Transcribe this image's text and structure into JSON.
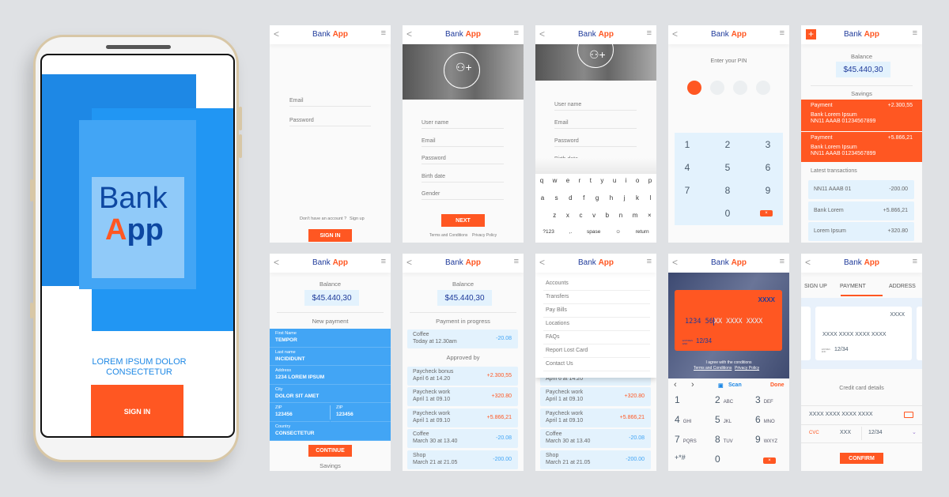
{
  "brand": {
    "bank": "Bank",
    "app": "App",
    "A": "A",
    "pp": "pp"
  },
  "colors": {
    "accent": "#ff5722",
    "primary": "#1e88e5",
    "dark_blue": "#1e3a9a",
    "light_blue": "#e3f2fd"
  },
  "phone": {
    "tagline_1": "LOREM IPSUM DOLOR",
    "tagline_2": "CONSECTETUR",
    "sign_in": "SIGN IN"
  },
  "header": {
    "back_icon": "chevron-left-icon",
    "menu_icon": "hamburger-icon",
    "back": "<",
    "menu": "≡"
  },
  "login": {
    "fields": [
      "Email",
      "Password"
    ],
    "prompt": "Don't have an account ?",
    "sign_up": "Sign up",
    "button": "SIGN IN"
  },
  "register": {
    "fields": [
      "User name",
      "Email",
      "Password",
      "Birth date",
      "Gender"
    ],
    "button": "NEXT",
    "terms": "Terms and Conditions",
    "privacy": "Privacy Policy"
  },
  "register_keyboard": {
    "fields": [
      "User name",
      "Email",
      "Password",
      "Birth date"
    ],
    "rows": [
      [
        "q",
        "w",
        "e",
        "r",
        "t",
        "y",
        "u",
        "i",
        "o",
        "p"
      ],
      [
        "a",
        "s",
        "d",
        "f",
        "g",
        "h",
        "j",
        "k",
        "l"
      ],
      [
        "z",
        "x",
        "c",
        "v",
        "b",
        "n",
        "m",
        "×"
      ],
      [
        "?123",
        ",.",
        "spase",
        "☺",
        "return"
      ]
    ]
  },
  "pin": {
    "label": "Enter your PIN",
    "entered": 1,
    "total": 4,
    "keys": [
      "1",
      "2",
      "3",
      "4",
      "5",
      "6",
      "7",
      "8",
      "9",
      "0"
    ],
    "delete": "×"
  },
  "home": {
    "balance_label": "Balance",
    "balance": "$45.440,30",
    "savings_label": "Savings",
    "payments": [
      {
        "label": "Payment",
        "amount": "+2.300,55",
        "bank": "Bank Lorem Ipsum",
        "account": "NN11 AAAB 01234567899"
      },
      {
        "label": "Payment",
        "amount": "+5.866,21",
        "bank": "Bank Lorem Ipsum",
        "account": "NN11 AAAB 01234567899"
      }
    ],
    "latest_label": "Latest transactions",
    "transactions": [
      {
        "name": "NN11 AAAB 01",
        "amount": "-200.00"
      },
      {
        "name": "Bank Lorem",
        "amount": "+5.866,21"
      },
      {
        "name": "Lorem Ipsum",
        "amount": "+320.80"
      }
    ]
  },
  "new_payment": {
    "balance_label": "Balance",
    "balance": "$45.440,30",
    "section": "New payment",
    "fields": [
      {
        "label": "First Name",
        "value": "TEMPOR"
      },
      {
        "label": "Last name",
        "value": "INCIDIDUNT"
      },
      {
        "label": "Address",
        "value": "1234  LOREM IPSUM"
      },
      {
        "label": "City",
        "value": "DOLOR SIT AMET"
      }
    ],
    "zip": [
      {
        "label": "ZIP",
        "value": "123456"
      },
      {
        "label": "ZIP",
        "value": "123456"
      }
    ],
    "country": {
      "label": "Country",
      "value": "CONSECTETUR"
    },
    "button": "CONTINUE",
    "footer": "Savings"
  },
  "progress": {
    "balance_label": "Balance",
    "balance": "$45.440,30",
    "section": "Payment in progress",
    "pending": {
      "name": "Coffee",
      "date": "Today at 12.30am",
      "amount": "-20.08"
    },
    "approved_label": "Approved by",
    "approved": [
      {
        "name": "Paycheck bonus",
        "date": "April 6 at 14.20",
        "amount": "+2.300,55"
      },
      {
        "name": "Paycheck work",
        "date": "April 1 at 09.10",
        "amount": "+320.80"
      },
      {
        "name": "Paycheck work",
        "date": "April 1 at 09.10",
        "amount": "+5.866,21"
      },
      {
        "name": "Coffee",
        "date": "March 30 at 13.40",
        "amount": "-20.08"
      },
      {
        "name": "Shop",
        "date": "March 21 at 21.05",
        "amount": "-200.00"
      }
    ]
  },
  "menu_screen": {
    "items": [
      "Accounts",
      "Transfers",
      "Pay Bills",
      "Locations",
      "FAQs",
      "Report Lost Card",
      "Contact Us"
    ],
    "behind": [
      {
        "name": "",
        "date": "April 6 at 14.20",
        "amount": ""
      },
      {
        "name": "Paycheck work",
        "date": "April 1 at 09.10",
        "amount": "+320.80"
      },
      {
        "name": "Paycheck work",
        "date": "April 1 at 09.10",
        "amount": "+5.866,21"
      },
      {
        "name": "Coffee",
        "date": "March 30 at 13.40",
        "amount": "-20.08"
      },
      {
        "name": "Shop",
        "date": "March 21 at 21.05",
        "amount": "-200.00"
      }
    ]
  },
  "card_scan": {
    "card_top": "XXXX",
    "number_typed": "1234 56",
    "number_rest": "XX XXXX XXXX",
    "expires_label": "EXPIRES END",
    "expiry": "12/34",
    "agree": "I agree with the conditions",
    "terms": "Terms and Conditions",
    "privacy": "Privacy Policy",
    "toolbar": {
      "prev": "‹",
      "next": "›",
      "scan": "Scan",
      "done": "Done"
    },
    "keys": [
      {
        "n": "1",
        "l": ""
      },
      {
        "n": "2",
        "l": "ABC"
      },
      {
        "n": "3",
        "l": "DEF"
      },
      {
        "n": "4",
        "l": "GHI"
      },
      {
        "n": "5",
        "l": "JKL"
      },
      {
        "n": "6",
        "l": "MNO"
      },
      {
        "n": "7",
        "l": "PQRS"
      },
      {
        "n": "8",
        "l": "TUV"
      },
      {
        "n": "9",
        "l": "WXYZ"
      },
      {
        "n": "+*#",
        "l": ""
      },
      {
        "n": "0",
        "l": ""
      }
    ],
    "delete": "×"
  },
  "payment_form": {
    "tabs": [
      "SIGN UP",
      "PAYMENT",
      "ADDRESS"
    ],
    "active_tab": "PAYMENT",
    "card_top": "XXXX",
    "card_number": "XXXX  XXXX  XXXX  XXXX",
    "expires_label": "EXPIRES END",
    "expiry": "12/34",
    "details_label": "Credit card details",
    "number_value": "XXXX  XXXX  XXXX  XXXX",
    "cvc_label": "CVC",
    "cvc_value": "XXX",
    "expiry_value": "12/34",
    "button": "CONFIRM"
  }
}
